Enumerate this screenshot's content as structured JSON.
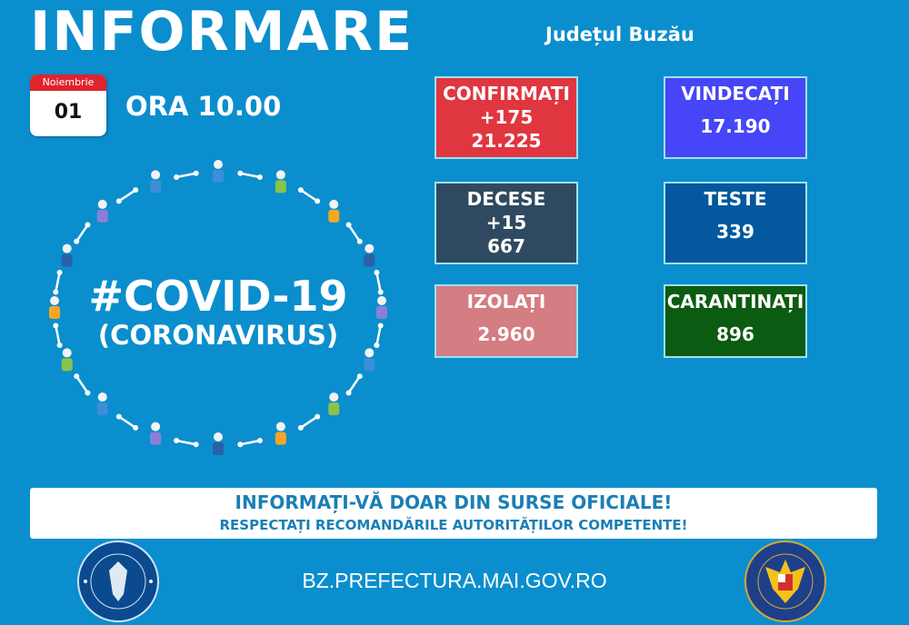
{
  "header": {
    "title": "INFORMARE",
    "county": "Județul Buzău",
    "date": {
      "month": "Noiembrie",
      "day": "01"
    },
    "hour": "ORA 10.00"
  },
  "stats": [
    {
      "id": "confirmati",
      "label": "CONFIRMAȚI",
      "delta": "+175",
      "value": "21.225",
      "color": "#e0363f"
    },
    {
      "id": "vindecati",
      "label": "VINDECAȚI",
      "delta": "",
      "value": "17.190",
      "color": "#4646f8"
    },
    {
      "id": "decese",
      "label": "DECESE",
      "delta": "+15",
      "value": "667",
      "color": "#2f4a60"
    },
    {
      "id": "teste",
      "label": "TESTE",
      "delta": "",
      "value": "339",
      "color": "#03589e"
    },
    {
      "id": "izolati",
      "label": "IZOLAȚI",
      "delta": "",
      "value": "2.960",
      "color": "#d47d82"
    },
    {
      "id": "carantinati",
      "label": "CARANTINAȚI",
      "delta": "",
      "value": "896",
      "color": "#0c5b12"
    }
  ],
  "graphic": {
    "line1": "#COVID-19",
    "line2": "(CORONAVIRUS)",
    "figure_colors": [
      "#3a8fd8",
      "#8bc34a",
      "#f6a623",
      "#2b5fa8",
      "#8a7fd8"
    ]
  },
  "banner": {
    "line1": "INFORMAȚI-VĂ DOAR DIN SURSE OFICIALE!",
    "line2": "RESPECTAȚI RECOMANDĂRILE AUTORITĂȚILOR COMPETENTE!"
  },
  "footer": {
    "website": "BZ.PREFECTURA.MAI.GOV.RO",
    "logo_left": "GUVERNUL ROMÂNIEI",
    "logo_right": "DEPARTAMENTUL PENTRU SITUAȚII DE URGENȚĂ M.A.I."
  }
}
